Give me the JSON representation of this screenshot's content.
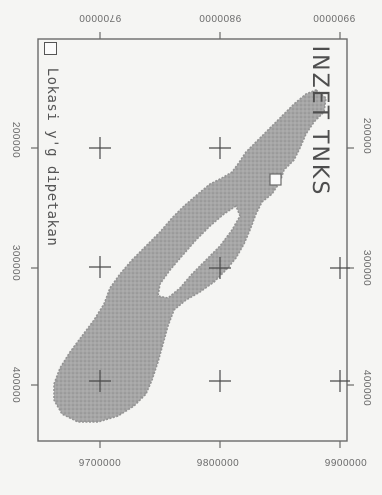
{
  "map": {
    "title": "INZET TNKS",
    "legend": {
      "label": "Lokasi y'g dipetakan",
      "symbol": "hollow-square-icon"
    },
    "grid_labels": {
      "top": [
        "9700000",
        "9800000",
        "9900000"
      ],
      "bottom": [
        "9700000",
        "9800000",
        "9900000"
      ],
      "left": [
        "200000",
        "300000",
        "400000"
      ],
      "right": [
        "200000",
        "300000",
        "400000"
      ]
    },
    "colors": {
      "land": "#a5a5a5",
      "land_stipple": "#8c8c8c",
      "frame": "#6a6a6a",
      "text": "#5a5a5a"
    }
  }
}
